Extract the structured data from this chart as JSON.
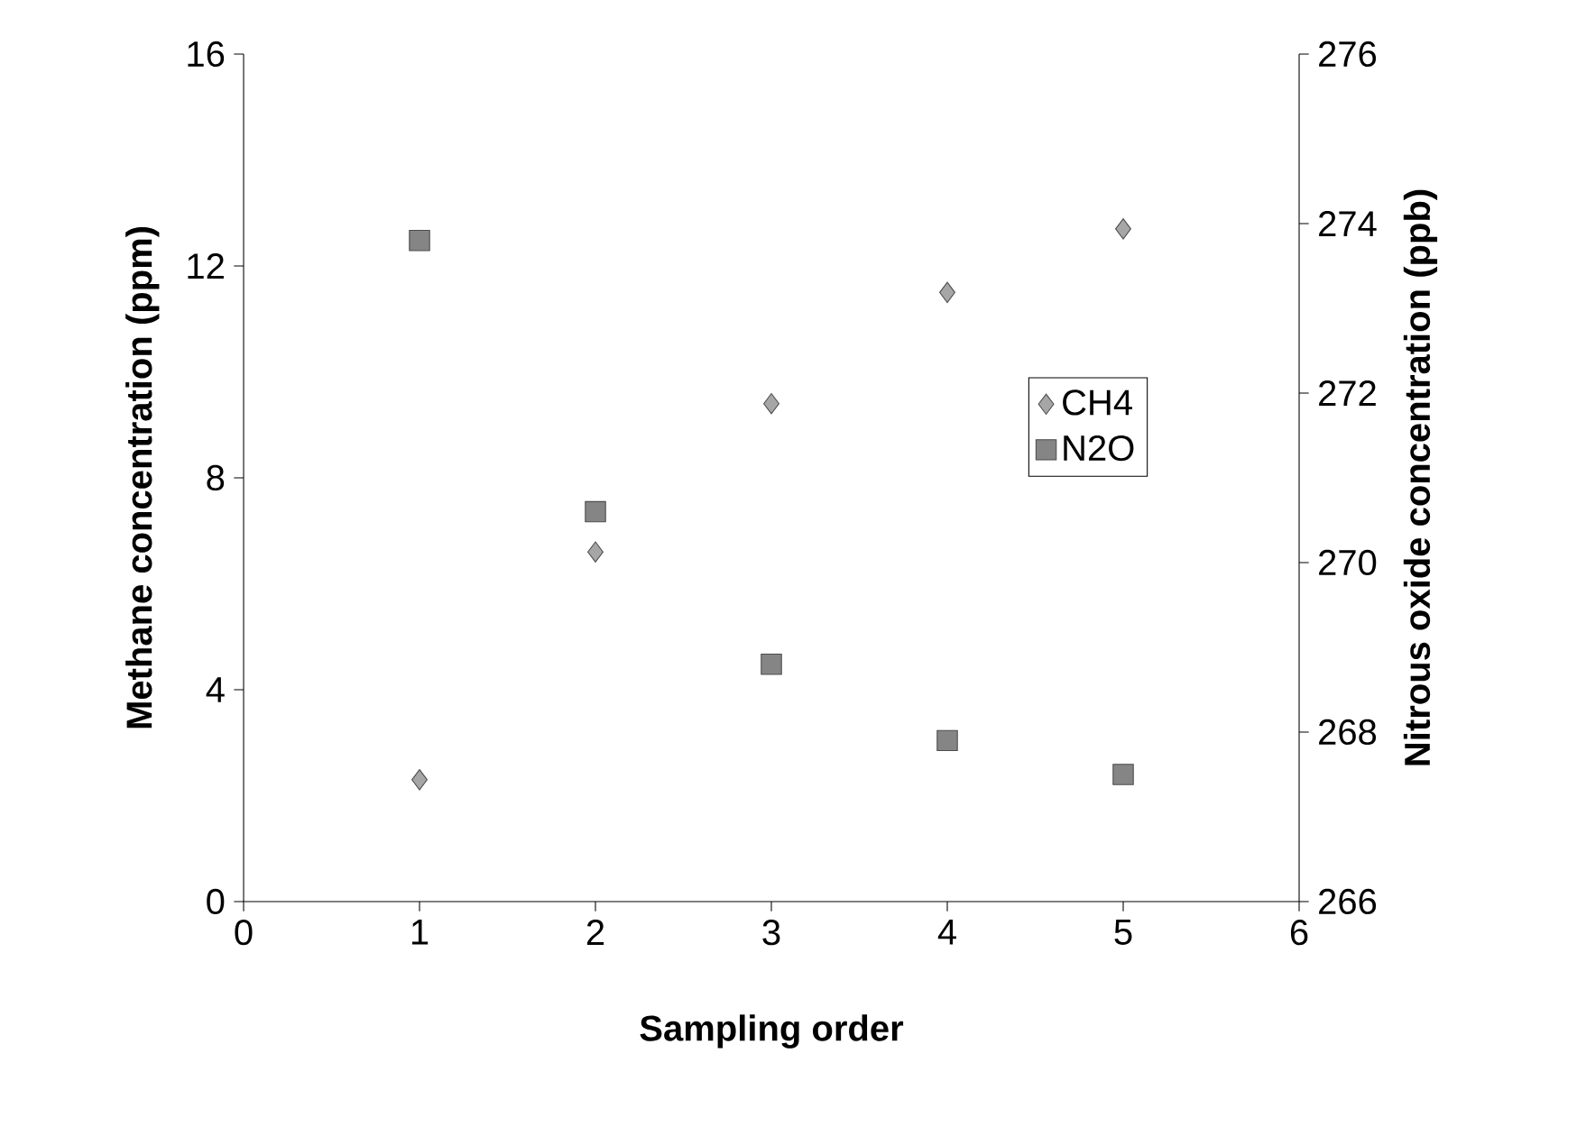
{
  "chart_data": {
    "type": "scatter",
    "xlabel": "Sampling order",
    "ylabel": "Methane concentration (ppm)",
    "y2label": "Nitrous oxide concentration (ppb)",
    "x": [
      1,
      2,
      3,
      4,
      5
    ],
    "series": [
      {
        "name": "CH4",
        "color": "#a6a6a6",
        "marker": "diamond",
        "values": [
          2.3,
          6.6,
          9.4,
          11.5,
          12.7
        ]
      },
      {
        "name": "N2O",
        "color": "#858585",
        "marker": "square",
        "axis": "y2",
        "values": [
          273.8,
          270.6,
          268.8,
          267.9,
          267.5
        ]
      }
    ],
    "xlim": [
      0,
      6
    ],
    "xticks": [
      0,
      1,
      2,
      3,
      4,
      5,
      6
    ],
    "ylim": [
      0,
      16
    ],
    "yticks": [
      0,
      4,
      8,
      12,
      16
    ],
    "y2lim": [
      266,
      276
    ],
    "y2ticks": [
      266,
      268,
      270,
      272,
      274,
      276
    ],
    "grid": false,
    "legend": "right"
  }
}
